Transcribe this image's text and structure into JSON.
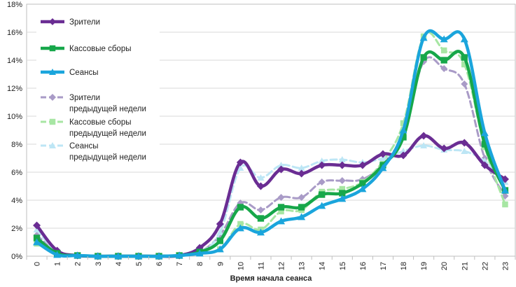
{
  "chart_data": {
    "type": "line",
    "title": "",
    "xlabel": "Время начала сеанса",
    "ylabel": "",
    "categories": [
      "0",
      "1",
      "2",
      "3",
      "4",
      "5",
      "6",
      "7",
      "8",
      "9",
      "10",
      "11",
      "12",
      "13",
      "14",
      "15",
      "16",
      "17",
      "18",
      "19",
      "20",
      "21",
      "22",
      "23"
    ],
    "ylim": [
      0,
      18
    ],
    "yticks": [
      0,
      2,
      4,
      6,
      8,
      10,
      12,
      14,
      16,
      18
    ],
    "ytick_labels": [
      "0%",
      "2%",
      "4%",
      "6%",
      "8%",
      "10%",
      "12%",
      "14%",
      "16%",
      "18%"
    ],
    "grid": true,
    "legend": "top-left",
    "series": [
      {
        "name": "Зрители",
        "style": "solid",
        "marker": "diamond",
        "color": "#6a2d93",
        "values": [
          2.2,
          0.4,
          0.05,
          0,
          0,
          0,
          0,
          0.05,
          0.6,
          2.3,
          6.7,
          5.0,
          6.2,
          5.9,
          6.5,
          6.5,
          6.5,
          7.3,
          7.2,
          8.6,
          7.7,
          8.1,
          6.5,
          5.5
        ]
      },
      {
        "name": "Кассовые сборы",
        "style": "solid",
        "marker": "square",
        "color": "#17a74a",
        "values": [
          1.3,
          0.2,
          0.05,
          0,
          0,
          0,
          0,
          0.05,
          0.3,
          1.1,
          3.5,
          2.7,
          3.5,
          3.5,
          4.4,
          4.5,
          5.2,
          6.5,
          8.5,
          14.2,
          14.0,
          14.2,
          8.0,
          4.7
        ]
      },
      {
        "name": "Сеансы",
        "style": "solid",
        "marker": "triangle",
        "color": "#1aa5dc",
        "values": [
          1.0,
          0.1,
          0.05,
          0,
          0,
          0,
          0,
          0.05,
          0.2,
          0.5,
          2.0,
          1.7,
          2.5,
          2.8,
          3.6,
          4.1,
          4.8,
          6.3,
          9.0,
          15.6,
          15.5,
          15.5,
          8.8,
          4.7
        ]
      },
      {
        "name": "Зрители предыдущей недели",
        "style": "dashed",
        "marker": "diamond",
        "color": "#a99bc7",
        "values": [
          1.5,
          0.3,
          0.05,
          0,
          0,
          0,
          0,
          0.05,
          0.3,
          1.5,
          3.8,
          3.3,
          4.2,
          4.2,
          5.3,
          5.4,
          5.5,
          6.6,
          8.8,
          13.9,
          13.4,
          12.3,
          7.0,
          4.3
        ]
      },
      {
        "name": "Кассовые сборы предыдущей недели",
        "style": "dashed",
        "marker": "square",
        "color": "#a7e6a3",
        "values": [
          0.9,
          0.2,
          0.05,
          0,
          0,
          0,
          0,
          0.05,
          0.3,
          0.5,
          2.3,
          1.9,
          3.2,
          3.3,
          4.6,
          4.8,
          5.3,
          6.8,
          9.5,
          15.7,
          14.7,
          13.7,
          7.8,
          3.7
        ]
      },
      {
        "name": "Сеансы предыдущей недели",
        "style": "dashed",
        "marker": "triangle",
        "color": "#bde6f5",
        "values": [
          1.9,
          0.3,
          0.05,
          0,
          0,
          0,
          0,
          0.05,
          0.3,
          1.7,
          6.3,
          5.6,
          6.5,
          6.3,
          6.8,
          6.9,
          6.7,
          7.0,
          7.5,
          7.9,
          7.6,
          7.5,
          6.8,
          5.3
        ]
      }
    ]
  },
  "legend_labels": [
    [
      "Зрители"
    ],
    [
      "Кассовые сборы"
    ],
    [
      "Сеансы"
    ],
    [
      "Зрители",
      "предыдущей недели"
    ],
    [
      "Кассовые сборы",
      "предыдущей недели"
    ],
    [
      "Сеансы",
      "предыдущей недели"
    ]
  ]
}
